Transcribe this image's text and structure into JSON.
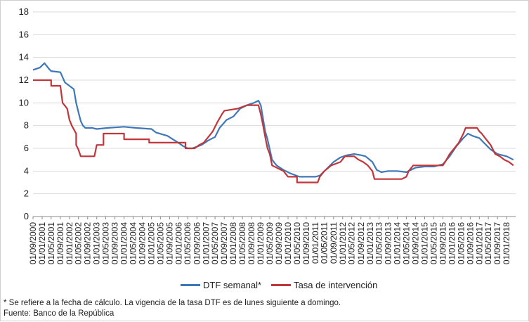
{
  "chart_data": {
    "type": "line",
    "xlabels": [
      "01/09/2000",
      "01/01/2001",
      "01/05/2001",
      "01/09/2001",
      "01/01/2002",
      "01/05/2002",
      "01/09/2002",
      "01/01/2003",
      "01/05/2003",
      "01/09/2003",
      "01/01/2004",
      "01/05/2004",
      "01/09/2004",
      "01/01/2005",
      "01/05/2005",
      "01/09/2005",
      "01/01/2006",
      "01/05/2006",
      "01/09/2006",
      "01/01/2007",
      "01/05/2007",
      "01/09/2007",
      "01/01/2008",
      "01/05/2008",
      "01/09/2008",
      "01/01/2009",
      "01/05/2009",
      "01/09/2009",
      "01/01/2010",
      "01/05/2010",
      "01/09/2010",
      "01/01/2011",
      "01/05/2011",
      "01/09/2011",
      "01/01/2012",
      "01/05/2012",
      "01/09/2012",
      "01/01/2013",
      "01/05/2013",
      "01/09/2013",
      "01/01/2014",
      "01/05/2014",
      "01/09/2014",
      "01/01/2015",
      "01/05/2015",
      "01/09/2015",
      "01/01/2016",
      "01/05/2016",
      "01/09/2016",
      "01/01/2017",
      "01/05/2017",
      "01/09/2017",
      "01/01/2018"
    ],
    "x_start": "2000-09-01",
    "x_end": "2018-05-01",
    "ylim": [
      0,
      18
    ],
    "yticks": [
      0,
      2,
      4,
      6,
      8,
      10,
      12,
      14,
      16,
      18
    ],
    "grid": true,
    "legend_position": "bottom",
    "series": [
      {
        "name": "DTF semanal*",
        "color": "#3f78b7",
        "points": [
          [
            "2000-09-01",
            12.9
          ],
          [
            "2000-12-01",
            13.1
          ],
          [
            "2001-02-01",
            13.5
          ],
          [
            "2001-04-01",
            13.0
          ],
          [
            "2001-05-01",
            12.8
          ],
          [
            "2001-09-01",
            12.7
          ],
          [
            "2001-11-01",
            11.8
          ],
          [
            "2002-01-01",
            11.5
          ],
          [
            "2002-03-01",
            11.2
          ],
          [
            "2002-04-01",
            10.0
          ],
          [
            "2002-05-01",
            9.2
          ],
          [
            "2002-06-01",
            8.4
          ],
          [
            "2002-07-01",
            8.0
          ],
          [
            "2002-08-01",
            7.8
          ],
          [
            "2002-11-01",
            7.8
          ],
          [
            "2003-01-01",
            7.7
          ],
          [
            "2003-06-01",
            7.8
          ],
          [
            "2004-01-01",
            7.9
          ],
          [
            "2004-06-01",
            7.8
          ],
          [
            "2005-01-01",
            7.7
          ],
          [
            "2005-03-01",
            7.4
          ],
          [
            "2005-08-01",
            7.1
          ],
          [
            "2005-12-01",
            6.6
          ],
          [
            "2006-03-01",
            6.2
          ],
          [
            "2006-05-01",
            6.0
          ],
          [
            "2006-07-01",
            6.0
          ],
          [
            "2006-11-01",
            6.3
          ],
          [
            "2007-02-01",
            6.7
          ],
          [
            "2007-05-01",
            7.0
          ],
          [
            "2007-07-01",
            7.8
          ],
          [
            "2007-10-01",
            8.5
          ],
          [
            "2008-01-01",
            8.8
          ],
          [
            "2008-04-01",
            9.5
          ],
          [
            "2008-07-01",
            9.8
          ],
          [
            "2008-10-01",
            10.0
          ],
          [
            "2008-12-01",
            10.2
          ],
          [
            "2009-01-01",
            9.8
          ],
          [
            "2009-03-01",
            7.5
          ],
          [
            "2009-04-01",
            6.8
          ],
          [
            "2009-06-01",
            5.0
          ],
          [
            "2009-08-01",
            4.5
          ],
          [
            "2009-11-01",
            4.1
          ],
          [
            "2010-02-01",
            3.8
          ],
          [
            "2010-06-01",
            3.5
          ],
          [
            "2010-10-01",
            3.5
          ],
          [
            "2011-01-01",
            3.5
          ],
          [
            "2011-03-01",
            3.6
          ],
          [
            "2011-06-01",
            4.2
          ],
          [
            "2011-09-01",
            4.8
          ],
          [
            "2011-12-01",
            5.2
          ],
          [
            "2012-03-01",
            5.4
          ],
          [
            "2012-06-01",
            5.5
          ],
          [
            "2012-09-01",
            5.4
          ],
          [
            "2012-11-01",
            5.3
          ],
          [
            "2013-02-01",
            4.8
          ],
          [
            "2013-04-01",
            4.1
          ],
          [
            "2013-06-01",
            3.9
          ],
          [
            "2013-09-01",
            4.0
          ],
          [
            "2014-01-01",
            4.0
          ],
          [
            "2014-05-01",
            3.9
          ],
          [
            "2014-09-01",
            4.3
          ],
          [
            "2015-01-01",
            4.4
          ],
          [
            "2015-05-01",
            4.4
          ],
          [
            "2015-09-01",
            4.6
          ],
          [
            "2015-12-01",
            5.3
          ],
          [
            "2016-03-01",
            6.2
          ],
          [
            "2016-06-01",
            6.9
          ],
          [
            "2016-08-01",
            7.3
          ],
          [
            "2016-10-01",
            7.1
          ],
          [
            "2017-01-01",
            6.9
          ],
          [
            "2017-03-01",
            6.5
          ],
          [
            "2017-06-01",
            5.9
          ],
          [
            "2017-09-01",
            5.5
          ],
          [
            "2018-01-01",
            5.3
          ],
          [
            "2018-04-01",
            5.0
          ]
        ]
      },
      {
        "name": "Tasa de intervención",
        "color": "#c0363a",
        "points": [
          [
            "2000-09-01",
            12.0
          ],
          [
            "2001-05-01",
            12.0
          ],
          [
            "2001-05-01",
            11.5
          ],
          [
            "2001-09-01",
            11.5
          ],
          [
            "2001-10-01",
            10.0
          ],
          [
            "2001-12-01",
            9.5
          ],
          [
            "2002-01-01",
            8.5
          ],
          [
            "2002-02-01",
            8.0
          ],
          [
            "2002-04-01",
            7.3
          ],
          [
            "2002-04-01",
            6.3
          ],
          [
            "2002-05-01",
            5.9
          ],
          [
            "2002-06-01",
            5.3
          ],
          [
            "2002-12-01",
            5.3
          ],
          [
            "2003-01-01",
            6.3
          ],
          [
            "2003-04-01",
            6.3
          ],
          [
            "2003-04-01",
            7.3
          ],
          [
            "2004-01-01",
            7.3
          ],
          [
            "2004-01-01",
            6.8
          ],
          [
            "2004-12-01",
            6.8
          ],
          [
            "2004-12-01",
            6.5
          ],
          [
            "2006-04-01",
            6.5
          ],
          [
            "2006-04-01",
            6.0
          ],
          [
            "2006-08-01",
            6.0
          ],
          [
            "2006-10-01",
            6.3
          ],
          [
            "2006-12-01",
            6.5
          ],
          [
            "2007-02-01",
            7.0
          ],
          [
            "2007-04-01",
            7.5
          ],
          [
            "2007-06-01",
            8.3
          ],
          [
            "2007-08-01",
            9.0
          ],
          [
            "2007-09-01",
            9.3
          ],
          [
            "2008-03-01",
            9.5
          ],
          [
            "2008-07-01",
            9.8
          ],
          [
            "2008-12-01",
            9.8
          ],
          [
            "2009-01-01",
            9.0
          ],
          [
            "2009-02-01",
            8.0
          ],
          [
            "2009-03-01",
            7.0
          ],
          [
            "2009-04-01",
            6.0
          ],
          [
            "2009-05-01",
            5.5
          ],
          [
            "2009-06-01",
            4.5
          ],
          [
            "2009-11-01",
            4.0
          ],
          [
            "2010-01-01",
            3.5
          ],
          [
            "2010-05-01",
            3.5
          ],
          [
            "2010-05-01",
            3.0
          ],
          [
            "2011-02-01",
            3.0
          ],
          [
            "2011-03-01",
            3.5
          ],
          [
            "2011-05-01",
            4.0
          ],
          [
            "2011-08-01",
            4.5
          ],
          [
            "2011-12-01",
            4.8
          ],
          [
            "2012-02-01",
            5.3
          ],
          [
            "2012-06-01",
            5.3
          ],
          [
            "2012-08-01",
            5.0
          ],
          [
            "2012-10-01",
            4.8
          ],
          [
            "2012-12-01",
            4.5
          ],
          [
            "2013-02-01",
            4.0
          ],
          [
            "2013-03-01",
            3.3
          ],
          [
            "2014-03-01",
            3.3
          ],
          [
            "2014-05-01",
            3.5
          ],
          [
            "2014-06-01",
            4.0
          ],
          [
            "2014-08-01",
            4.5
          ],
          [
            "2015-09-01",
            4.5
          ],
          [
            "2015-10-01",
            4.8
          ],
          [
            "2015-12-01",
            5.5
          ],
          [
            "2016-02-01",
            6.0
          ],
          [
            "2016-04-01",
            6.5
          ],
          [
            "2016-06-01",
            7.3
          ],
          [
            "2016-07-01",
            7.8
          ],
          [
            "2016-12-01",
            7.8
          ],
          [
            "2017-01-01",
            7.5
          ],
          [
            "2017-02-01",
            7.3
          ],
          [
            "2017-04-01",
            6.8
          ],
          [
            "2017-06-01",
            6.3
          ],
          [
            "2017-08-01",
            5.5
          ],
          [
            "2017-10-01",
            5.3
          ],
          [
            "2017-12-01",
            5.0
          ],
          [
            "2018-02-01",
            4.8
          ],
          [
            "2018-04-01",
            4.5
          ]
        ]
      }
    ]
  },
  "footnote": "* Se refiere a la fecha de cálculo. La vigencia de la tasa DTF es de lunes siguiente a domingo.",
  "source": "Fuente:  Banco de la República"
}
